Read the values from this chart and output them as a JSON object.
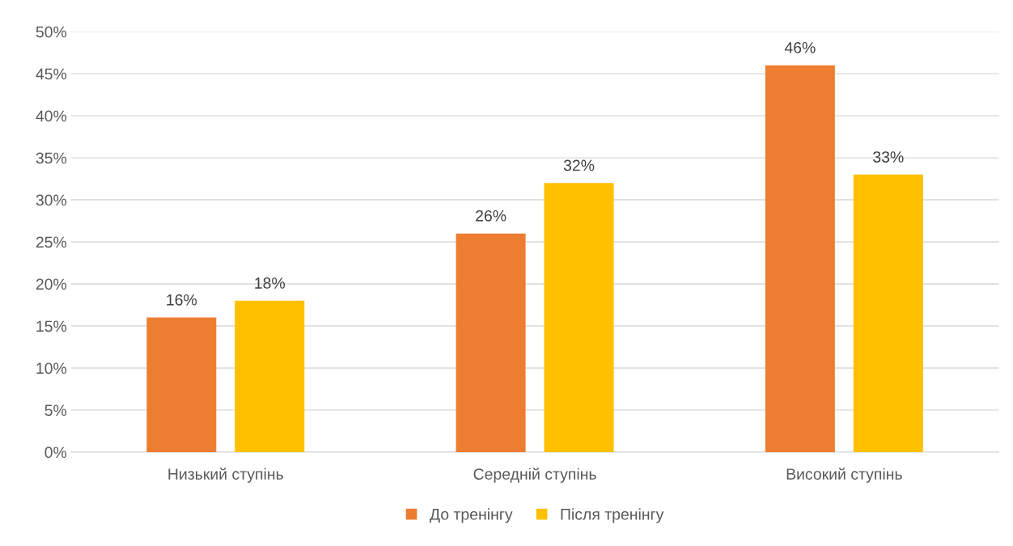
{
  "chart_data": {
    "type": "bar",
    "categories": [
      "Низький ступінь",
      "Середній ступінь",
      "Високий ступінь"
    ],
    "series": [
      {
        "name": "До тренінгу",
        "color": "#ed7d31",
        "values": [
          16,
          26,
          46
        ],
        "value_labels": [
          "16%",
          "26%",
          "46%"
        ]
      },
      {
        "name": "Після тренінгу",
        "color": "#ffc000",
        "values": [
          18,
          32,
          33
        ],
        "value_labels": [
          "18%",
          "32%",
          "33%"
        ]
      }
    ],
    "ylim": [
      0,
      50
    ],
    "yticks": [
      {
        "value": 0,
        "label": "0%"
      },
      {
        "value": 5,
        "label": "5%"
      },
      {
        "value": 10,
        "label": "10%"
      },
      {
        "value": 15,
        "label": "15%"
      },
      {
        "value": 20,
        "label": "20%"
      },
      {
        "value": 25,
        "label": "25%"
      },
      {
        "value": 30,
        "label": "30%"
      },
      {
        "value": 35,
        "label": "35%"
      },
      {
        "value": 40,
        "label": "40%"
      },
      {
        "value": 45,
        "label": "45%"
      },
      {
        "value": 50,
        "label": "50%"
      }
    ],
    "grid": "y",
    "legend": "bottom"
  }
}
